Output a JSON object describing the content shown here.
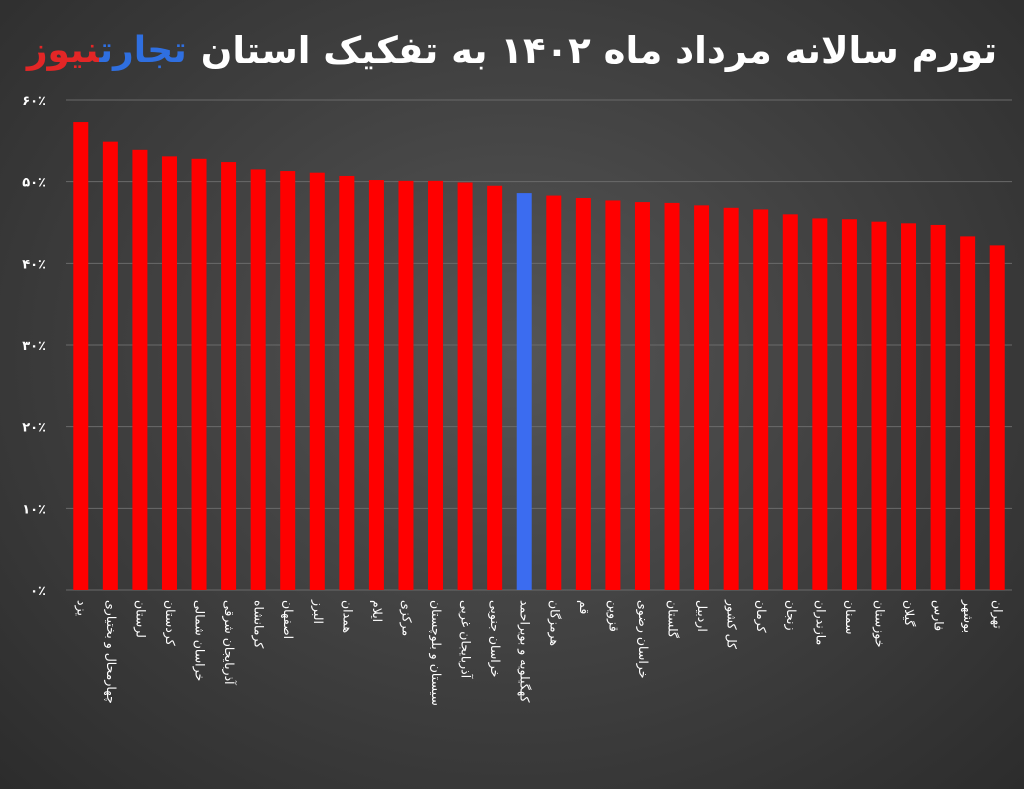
{
  "title": "تورم سالانه مرداد ماه ۱۴۰۲ به تفکیک استان",
  "logo": {
    "part1": "تجارت",
    "part2": "نیوز"
  },
  "colors": {
    "bar": "#ff0000",
    "highlight": "#3b6cf0",
    "grid": "#6a6a6a",
    "text": "#ffffff"
  },
  "chart_data": {
    "type": "bar",
    "ylim": [
      0,
      60
    ],
    "yticks": [
      0,
      10,
      20,
      30,
      40,
      50,
      60
    ],
    "ytick_labels": [
      "۰٪",
      "۱۰٪",
      "۲۰٪",
      "۳۰٪",
      "۴۰٪",
      "۵۰٪",
      "۶۰٪"
    ],
    "grid": true,
    "highlight_index": 15,
    "categories": [
      "یزد",
      "چهارمحال و بختیاری",
      "لرستان",
      "کردستان",
      "خراسان شمالی",
      "آذربایجان شرقی",
      "کرمانشاه",
      "اصفهان",
      "البرز",
      "همدان",
      "ایلام",
      "مرکزی",
      "سیستان و بلوچستان",
      "آذربایجان غربی",
      "خراسان جنوبی",
      "کهگیلویه و بویراحمد",
      "هرمزگان",
      "قم",
      "قزوین",
      "خراسان رضوی",
      "گلستان",
      "اردبیل",
      "کل کشور",
      "کرمان",
      "زنجان",
      "مازندران",
      "سمنان",
      "خوزستان",
      "گیلان",
      "فارس",
      "بوشهر",
      "تهران"
    ],
    "values": [
      57.3,
      54.9,
      53.9,
      53.1,
      52.8,
      52.4,
      51.5,
      51.3,
      51.1,
      50.7,
      50.2,
      50.1,
      50.1,
      49.9,
      49.5,
      48.6,
      48.3,
      48.0,
      47.7,
      47.5,
      47.4,
      47.1,
      46.8,
      46.6,
      46.0,
      45.5,
      45.4,
      45.1,
      44.9,
      44.7,
      43.3,
      42.2
    ]
  }
}
